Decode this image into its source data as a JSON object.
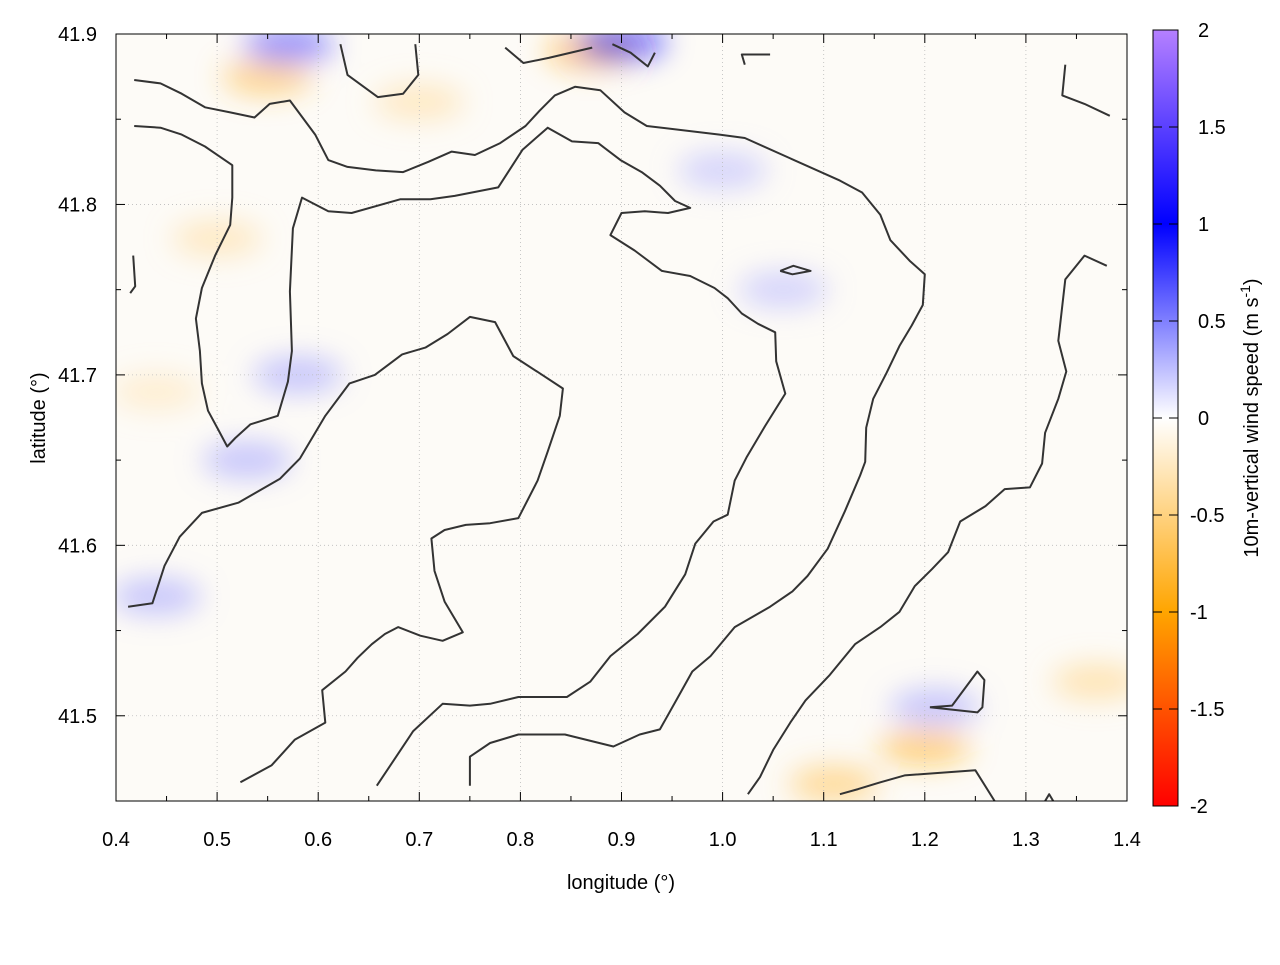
{
  "chart_data": {
    "type": "heatmap",
    "title": "",
    "xlabel": "longitude (°)",
    "ylabel": "latitude (°)",
    "xlim": [
      0.4,
      1.4
    ],
    "ylim": [
      41.45,
      41.9
    ],
    "xticks": [
      "0.4",
      "0.5",
      "0.6",
      "0.7",
      "0.8",
      "0.9",
      "1.0",
      "1.1",
      "1.2",
      "1.3",
      "1.4"
    ],
    "yticks": [
      "41.5",
      "41.6",
      "41.7",
      "41.8",
      "41.9"
    ],
    "grid": true,
    "colorbar": {
      "label": "10m-vertical wind speed (m s",
      "label_sup": "-1",
      "label_end": ")",
      "range": [
        -2,
        2
      ],
      "ticks": [
        "2",
        "1.5",
        "1",
        "0.5",
        "0",
        "-0.5",
        "-1",
        "-1.5",
        "-2"
      ],
      "colors": [
        {
          "value": -2,
          "color": "#ff0000"
        },
        {
          "value": -1,
          "color": "#ffa500"
        },
        {
          "value": 0,
          "color": "#ffffff"
        },
        {
          "value": 1,
          "color": "#0000ff"
        },
        {
          "value": 2,
          "color": "#b580ff"
        }
      ]
    },
    "field_highlights": [
      {
        "lon": 0.55,
        "lat": 41.875,
        "value": -0.8
      },
      {
        "lon": 0.87,
        "lat": 41.89,
        "value": -1.0
      },
      {
        "lon": 0.7,
        "lat": 41.86,
        "value": -0.4
      },
      {
        "lon": 1.2,
        "lat": 41.482,
        "value": -0.9
      },
      {
        "lon": 1.11,
        "lat": 41.46,
        "value": -0.7
      },
      {
        "lon": 1.37,
        "lat": 41.52,
        "value": -0.5
      },
      {
        "lon": 0.5,
        "lat": 41.78,
        "value": -0.4
      },
      {
        "lon": 0.44,
        "lat": 41.69,
        "value": -0.3
      },
      {
        "lon": 0.57,
        "lat": 41.893,
        "value": 0.8
      },
      {
        "lon": 0.9,
        "lat": 41.895,
        "value": 1.0
      },
      {
        "lon": 0.58,
        "lat": 41.7,
        "value": 0.4
      },
      {
        "lon": 0.53,
        "lat": 41.65,
        "value": 0.4
      },
      {
        "lon": 1.0,
        "lat": 41.82,
        "value": 0.3
      },
      {
        "lon": 1.06,
        "lat": 41.75,
        "value": 0.3
      },
      {
        "lon": 0.44,
        "lat": 41.57,
        "value": 0.4
      },
      {
        "lon": 1.21,
        "lat": 41.505,
        "value": 0.4
      }
    ],
    "contour_color": "#333333",
    "contours": [
      [
        [
          0.418,
          41.873
        ],
        [
          0.444,
          41.871
        ],
        [
          0.465,
          41.865
        ],
        [
          0.488,
          41.857
        ],
        [
          0.513,
          41.854
        ],
        [
          0.537,
          41.851
        ],
        [
          0.552,
          41.859
        ],
        [
          0.572,
          41.861
        ],
        [
          0.597,
          41.841
        ],
        [
          0.61,
          41.826
        ],
        [
          0.629,
          41.822
        ],
        [
          0.657,
          41.82
        ],
        [
          0.684,
          41.819
        ],
        [
          0.709,
          41.825
        ],
        [
          0.732,
          41.831
        ],
        [
          0.755,
          41.829
        ],
        [
          0.78,
          41.836
        ],
        [
          0.805,
          41.846
        ],
        [
          0.819,
          41.855
        ],
        [
          0.834,
          41.864
        ],
        [
          0.854,
          41.869
        ],
        [
          0.879,
          41.867
        ],
        [
          0.903,
          41.854
        ],
        [
          0.925,
          41.846
        ],
        [
          0.997,
          41.841
        ],
        [
          1.022,
          41.839
        ],
        [
          1.067,
          41.827
        ],
        [
          1.116,
          41.814
        ],
        [
          1.138,
          41.807
        ],
        [
          1.156,
          41.794
        ],
        [
          1.166,
          41.779
        ],
        [
          1.185,
          41.767
        ],
        [
          1.2,
          41.759
        ],
        [
          1.198,
          41.741
        ],
        [
          1.187,
          41.729
        ],
        [
          1.175,
          41.717
        ],
        [
          1.162,
          41.701
        ],
        [
          1.149,
          41.686
        ],
        [
          1.142,
          41.669
        ],
        [
          1.141,
          41.649
        ],
        [
          1.136,
          41.641
        ],
        [
          1.121,
          41.62
        ],
        [
          1.104,
          41.598
        ],
        [
          1.084,
          41.582
        ],
        [
          1.069,
          41.573
        ],
        [
          1.047,
          41.564
        ],
        [
          1.012,
          41.552
        ],
        [
          0.988,
          41.535
        ],
        [
          0.97,
          41.526
        ],
        [
          0.955,
          41.51
        ],
        [
          0.938,
          41.492
        ],
        [
          0.918,
          41.489
        ],
        [
          0.892,
          41.482
        ],
        [
          0.844,
          41.489
        ],
        [
          0.798,
          41.489
        ],
        [
          0.77,
          41.484
        ],
        [
          0.75,
          41.476
        ],
        [
          0.75,
          41.459
        ]
      ],
      [
        [
          0.418,
          41.846
        ],
        [
          0.444,
          41.845
        ],
        [
          0.465,
          41.841
        ],
        [
          0.488,
          41.834
        ],
        [
          0.515,
          41.823
        ],
        [
          0.515,
          41.804
        ],
        [
          0.513,
          41.788
        ],
        [
          0.498,
          41.77
        ],
        [
          0.485,
          41.751
        ],
        [
          0.479,
          41.733
        ],
        [
          0.483,
          41.714
        ],
        [
          0.485,
          41.695
        ],
        [
          0.491,
          41.679
        ],
        [
          0.501,
          41.668
        ],
        [
          0.51,
          41.658
        ],
        [
          0.518,
          41.663
        ],
        [
          0.533,
          41.671
        ],
        [
          0.56,
          41.676
        ],
        [
          0.57,
          41.696
        ],
        [
          0.574,
          41.714
        ],
        [
          0.572,
          41.749
        ],
        [
          0.575,
          41.786
        ],
        [
          0.584,
          41.804
        ],
        [
          0.61,
          41.796
        ],
        [
          0.633,
          41.795
        ],
        [
          0.681,
          41.803
        ],
        [
          0.711,
          41.803
        ],
        [
          0.735,
          41.805
        ],
        [
          0.778,
          41.81
        ],
        [
          0.802,
          41.832
        ],
        [
          0.827,
          41.845
        ],
        [
          0.851,
          41.837
        ],
        [
          0.877,
          41.836
        ],
        [
          0.899,
          41.826
        ],
        [
          0.92,
          41.819
        ],
        [
          0.938,
          41.811
        ],
        [
          0.953,
          41.802
        ],
        [
          0.968,
          41.798
        ],
        [
          0.946,
          41.795
        ],
        [
          0.923,
          41.796
        ],
        [
          0.9,
          41.795
        ],
        [
          0.889,
          41.782
        ],
        [
          0.913,
          41.773
        ],
        [
          0.94,
          41.761
        ],
        [
          0.968,
          41.758
        ],
        [
          0.992,
          41.751
        ],
        [
          1.005,
          41.745
        ],
        [
          1.019,
          41.736
        ],
        [
          1.035,
          41.73
        ],
        [
          1.052,
          41.725
        ],
        [
          1.053,
          41.708
        ],
        [
          1.062,
          41.689
        ],
        [
          1.042,
          41.67
        ],
        [
          1.024,
          41.652
        ],
        [
          1.012,
          41.638
        ],
        [
          1.005,
          41.618
        ],
        [
          0.991,
          41.614
        ],
        [
          0.973,
          41.601
        ],
        [
          0.963,
          41.583
        ],
        [
          0.943,
          41.564
        ],
        [
          0.916,
          41.548
        ],
        [
          0.889,
          41.535
        ],
        [
          0.869,
          41.52
        ],
        [
          0.846,
          41.511
        ],
        [
          0.798,
          41.511
        ],
        [
          0.77,
          41.507
        ],
        [
          0.75,
          41.506
        ],
        [
          0.723,
          41.507
        ],
        [
          0.694,
          41.491
        ],
        [
          0.676,
          41.475
        ],
        [
          0.658,
          41.459
        ]
      ],
      [
        [
          0.412,
          41.564
        ],
        [
          0.436,
          41.566
        ],
        [
          0.448,
          41.588
        ],
        [
          0.463,
          41.605
        ],
        [
          0.485,
          41.619
        ],
        [
          0.521,
          41.625
        ],
        [
          0.562,
          41.639
        ],
        [
          0.582,
          41.651
        ],
        [
          0.607,
          41.676
        ],
        [
          0.631,
          41.695
        ],
        [
          0.656,
          41.7
        ],
        [
          0.683,
          41.712
        ],
        [
          0.706,
          41.716
        ],
        [
          0.728,
          41.724
        ],
        [
          0.75,
          41.734
        ],
        [
          0.775,
          41.731
        ],
        [
          0.793,
          41.711
        ],
        [
          0.819,
          41.701
        ],
        [
          0.842,
          41.692
        ],
        [
          0.839,
          41.676
        ],
        [
          0.827,
          41.655
        ],
        [
          0.817,
          41.638
        ],
        [
          0.798,
          41.616
        ],
        [
          0.77,
          41.613
        ],
        [
          0.746,
          41.612
        ],
        [
          0.725,
          41.609
        ],
        [
          0.712,
          41.604
        ],
        [
          0.715,
          41.585
        ],
        [
          0.725,
          41.567
        ],
        [
          0.743,
          41.549
        ],
        [
          0.723,
          41.544
        ],
        [
          0.701,
          41.547
        ],
        [
          0.679,
          41.552
        ],
        [
          0.666,
          41.548
        ],
        [
          0.653,
          41.542
        ],
        [
          0.639,
          41.534
        ],
        [
          0.627,
          41.526
        ],
        [
          0.604,
          41.515
        ],
        [
          0.607,
          41.496
        ],
        [
          0.577,
          41.486
        ],
        [
          0.554,
          41.471
        ],
        [
          0.523,
          41.461
        ]
      ],
      [
        [
          1.38,
          41.764
        ],
        [
          1.358,
          41.77
        ],
        [
          1.339,
          41.756
        ],
        [
          1.332,
          41.72
        ],
        [
          1.34,
          41.702
        ],
        [
          1.332,
          41.686
        ],
        [
          1.319,
          41.666
        ],
        [
          1.316,
          41.648
        ],
        [
          1.304,
          41.634
        ],
        [
          1.279,
          41.633
        ],
        [
          1.26,
          41.623
        ],
        [
          1.235,
          41.614
        ],
        [
          1.223,
          41.596
        ],
        [
          1.207,
          41.586
        ],
        [
          1.19,
          41.576
        ],
        [
          1.175,
          41.561
        ],
        [
          1.156,
          41.552
        ],
        [
          1.131,
          41.542
        ],
        [
          1.106,
          41.524
        ],
        [
          1.082,
          41.509
        ],
        [
          1.067,
          41.496
        ],
        [
          1.05,
          41.48
        ],
        [
          1.037,
          41.464
        ],
        [
          1.025,
          41.454
        ]
      ],
      [
        [
          0.622,
          41.894
        ],
        [
          0.629,
          41.876
        ],
        [
          0.659,
          41.863
        ],
        [
          0.684,
          41.865
        ],
        [
          0.699,
          41.876
        ],
        [
          0.696,
          41.894
        ]
      ],
      [
        [
          0.785,
          41.892
        ],
        [
          0.803,
          41.883
        ],
        [
          0.828,
          41.886
        ],
        [
          0.871,
          41.892
        ]
      ],
      [
        [
          0.891,
          41.894
        ],
        [
          0.909,
          41.889
        ],
        [
          0.926,
          41.881
        ],
        [
          0.933,
          41.889
        ]
      ],
      [
        [
          1.022,
          41.882
        ],
        [
          1.019,
          41.888
        ],
        [
          1.047,
          41.888
        ]
      ],
      [
        [
          1.339,
          41.882
        ],
        [
          1.336,
          41.864
        ],
        [
          1.358,
          41.859
        ],
        [
          1.383,
          41.852
        ]
      ],
      [
        [
          0.417,
          41.77
        ],
        [
          0.419,
          41.752
        ],
        [
          0.414,
          41.748
        ]
      ],
      [
        [
          1.057,
          41.761
        ],
        [
          1.07,
          41.764
        ],
        [
          1.087,
          41.761
        ],
        [
          1.069,
          41.759
        ],
        [
          1.057,
          41.761
        ]
      ],
      [
        [
          1.205,
          41.505
        ],
        [
          1.227,
          41.506
        ],
        [
          1.252,
          41.526
        ],
        [
          1.259,
          41.521
        ],
        [
          1.257,
          41.505
        ],
        [
          1.252,
          41.502
        ],
        [
          1.205,
          41.505
        ]
      ],
      [
        [
          1.116,
          41.454
        ],
        [
          1.134,
          41.457
        ],
        [
          1.156,
          41.461
        ],
        [
          1.18,
          41.465
        ],
        [
          1.25,
          41.468
        ],
        [
          1.269,
          41.45
        ]
      ],
      [
        [
          1.319,
          41.45
        ],
        [
          1.323,
          41.454
        ],
        [
          1.327,
          41.45
        ]
      ]
    ]
  }
}
